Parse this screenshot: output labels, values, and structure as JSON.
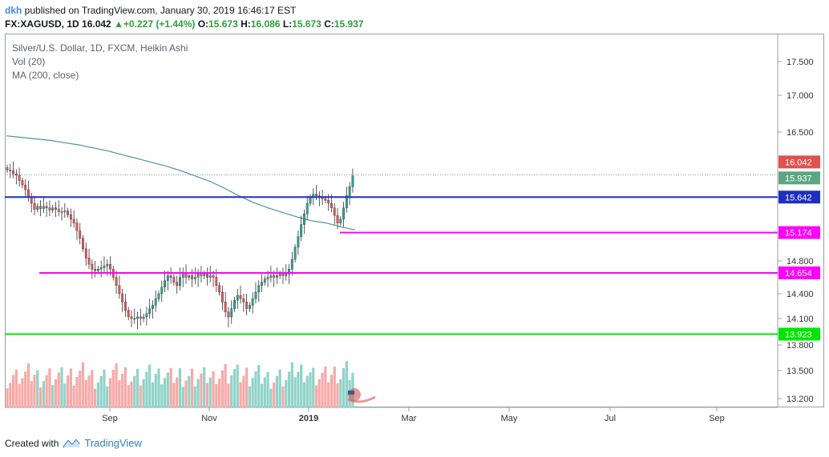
{
  "header": {
    "user": "dkh",
    "published": " published on TradingView.com, January 30, 2019 16:46:17 EST",
    "symbol": "FX:XAGUSD, 1D",
    "last": "16.042",
    "change": "+0.227 (+1.44%)",
    "o_label": "O:",
    "o": "15.673",
    "h_label": "H:",
    "h": "16.086",
    "l_label": "L:",
    "l": "15.673",
    "c_label": "C:",
    "c": "15.937"
  },
  "legend": {
    "title": "Silver/U.S. Dollar, 1D, FXCM, Heikin Ashi",
    "vol": "Vol (20)",
    "ma": "MA (200, close)"
  },
  "footer": {
    "created_with": "Created with",
    "brand": "TradingView"
  },
  "colors": {
    "up": "#26a69a",
    "down": "#ef5350",
    "ma": "#4a90a8",
    "blue_line": "#1f2fbf",
    "magenta_line": "#ff00ff",
    "green_line": "#00e600",
    "vol_up": "#8fd3c8",
    "vol_down": "#f7a9a7"
  },
  "chart_data": {
    "type": "candlestick",
    "title": "Silver/U.S. Dollar, 1D, FXCM, Heikin Ashi",
    "x_ticks": [
      "Sep",
      "Nov",
      "2019",
      "Mar",
      "May",
      "Jul",
      "Sep"
    ],
    "y_ticks": [
      "17.500",
      "17.000",
      "16.500",
      "14.800",
      "14.400",
      "14.100",
      "13.800",
      "13.500",
      "13.200"
    ],
    "price_labels": [
      {
        "value": "16.042",
        "color": "#e0524e"
      },
      {
        "value": "15.937",
        "color": "#5aa684"
      },
      {
        "value": "15.642",
        "color": "#1f2fbf"
      },
      {
        "value": "15.174",
        "color": "#ff00ff"
      },
      {
        "value": "14.654",
        "color": "#ff00ff"
      },
      {
        "value": "13.923",
        "color": "#00e600"
      }
    ],
    "horizontal_lines": [
      {
        "level": 15.642,
        "color": "#1f2fbf"
      },
      {
        "level": 15.174,
        "color": "#ff00ff"
      },
      {
        "level": 14.654,
        "color": "#ff00ff"
      },
      {
        "level": 13.923,
        "color": "#00e600"
      }
    ],
    "close": [
      16.0,
      15.99,
      15.95,
      15.93,
      15.86,
      15.8,
      15.74,
      15.64,
      15.56,
      15.48,
      15.52,
      15.49,
      15.52,
      15.5,
      15.47,
      15.5,
      15.48,
      15.45,
      15.45,
      15.46,
      15.41,
      15.35,
      15.3,
      15.2,
      15.1,
      14.96,
      14.84,
      14.76,
      14.7,
      14.68,
      14.7,
      14.72,
      14.74,
      14.76,
      14.7,
      14.6,
      14.5,
      14.4,
      14.3,
      14.2,
      14.12,
      14.1,
      14.1,
      14.12,
      14.1,
      14.12,
      14.16,
      14.22,
      14.26,
      14.34,
      14.4,
      14.48,
      14.56,
      14.62,
      14.6,
      14.54,
      14.5,
      14.6,
      14.66,
      14.6,
      14.62,
      14.58,
      14.6,
      14.64,
      14.62,
      14.64,
      14.6,
      14.62,
      14.6,
      14.5,
      14.42,
      14.3,
      14.18,
      14.12,
      14.22,
      14.32,
      14.38,
      14.34,
      14.3,
      14.22,
      14.26,
      14.34,
      14.42,
      14.5,
      14.54,
      14.58,
      14.6,
      14.62,
      14.6,
      14.62,
      14.64,
      14.62,
      14.64,
      14.7,
      14.82,
      14.98,
      15.12,
      15.28,
      15.42,
      15.56,
      15.64,
      15.68,
      15.66,
      15.64,
      15.62,
      15.6,
      15.56,
      15.5,
      15.4,
      15.3,
      15.35,
      15.5,
      15.66,
      15.78,
      15.92
    ],
    "ma_200": [
      16.45,
      16.43,
      16.41,
      16.39,
      16.36,
      16.33,
      16.29,
      16.25,
      16.2,
      16.15,
      16.1,
      16.05,
      15.99,
      15.92,
      15.85,
      15.76,
      15.66,
      15.57,
      15.5,
      15.44,
      15.38,
      15.33,
      15.3,
      15.25,
      15.21
    ]
  }
}
